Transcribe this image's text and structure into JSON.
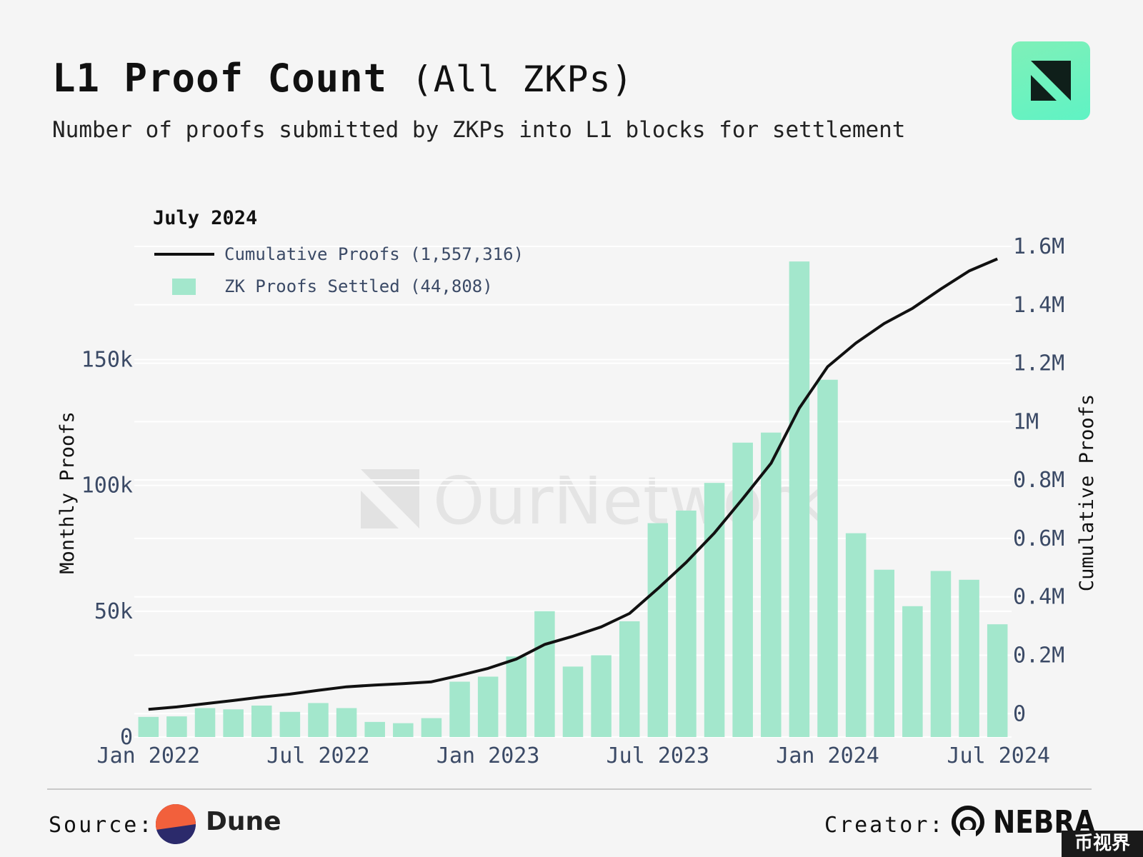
{
  "header": {
    "title": "L1 Proof Count",
    "title_paren": "(All ZKPs)",
    "subtitle": "Number of proofs submitted by ZKPs into L1 blocks for settlement"
  },
  "footer": {
    "source_label": "Source:",
    "source_name": "Dune",
    "creator_label": "Creator:",
    "creator_name": "NEBRA",
    "corner_tag": "币视界"
  },
  "colors": {
    "bar": "#a3e7cc",
    "line": "#111111",
    "grid": "#ffffff",
    "axis_text": "#3b4a66",
    "logo_accent": "#5ff3c4"
  },
  "chart_data": {
    "type": "bar",
    "watermark": "OurNetwork",
    "legend": {
      "title": "July 2024",
      "placement": "top-left",
      "items": [
        {
          "label": "Cumulative Proofs (1,557,316)",
          "kind": "line"
        },
        {
          "label": "ZK Proofs Settled (44,808)",
          "kind": "bar"
        }
      ]
    },
    "x_tick_labels": [
      "Jan 2022",
      "Jul 2022",
      "Jan 2023",
      "Jul 2023",
      "Jan 2024",
      "Jul 2024"
    ],
    "months": [
      "2022-01",
      "2022-02",
      "2022-03",
      "2022-04",
      "2022-05",
      "2022-06",
      "2022-07",
      "2022-08",
      "2022-09",
      "2022-10",
      "2022-11",
      "2022-12",
      "2023-01",
      "2023-02",
      "2023-03",
      "2023-04",
      "2023-05",
      "2023-06",
      "2023-07",
      "2023-08",
      "2023-09",
      "2023-10",
      "2023-11",
      "2023-12",
      "2024-01",
      "2024-02",
      "2024-03",
      "2024-04",
      "2024-05",
      "2024-06",
      "2024-07"
    ],
    "series": [
      {
        "name": "ZK Proofs Settled",
        "type": "bar",
        "axis": "left",
        "values": [
          8000,
          8200,
          11500,
          11000,
          12500,
          10000,
          13500,
          11500,
          6000,
          5500,
          7500,
          22000,
          24000,
          32000,
          50000,
          28000,
          32500,
          46000,
          85000,
          90000,
          101000,
          117000,
          121000,
          189000,
          142000,
          81000,
          66500,
          52000,
          66000,
          62500,
          44808
        ]
      },
      {
        "name": "Cumulative Proofs",
        "type": "line",
        "axis": "right",
        "values": [
          15000,
          23000,
          34000,
          45000,
          57000,
          67000,
          80000,
          92000,
          98000,
          103000,
          109000,
          131000,
          155000,
          187000,
          237000,
          265000,
          297000,
          343000,
          428000,
          518000,
          619000,
          736000,
          857000,
          1046000,
          1188000,
          1269000,
          1336000,
          1388000,
          1454000,
          1516000,
          1557316
        ]
      }
    ],
    "y_left": {
      "label": "Monthly Proofs",
      "range": [
        0,
        195000
      ],
      "ticks": [
        0,
        50000,
        100000,
        150000
      ],
      "tick_labels": [
        "0",
        "50k",
        "100k",
        "150k"
      ]
    },
    "y_right": {
      "label": "Cumulative Proofs",
      "range": [
        -80000,
        1600000
      ],
      "ticks": [
        0,
        200000,
        400000,
        600000,
        800000,
        1000000,
        1200000,
        1400000,
        1600000
      ],
      "tick_labels": [
        "0",
        "0.2M",
        "0.4M",
        "0.6M",
        "0.8M",
        "1M",
        "1.2M",
        "1.4M",
        "1.6M"
      ]
    },
    "grid": true
  }
}
